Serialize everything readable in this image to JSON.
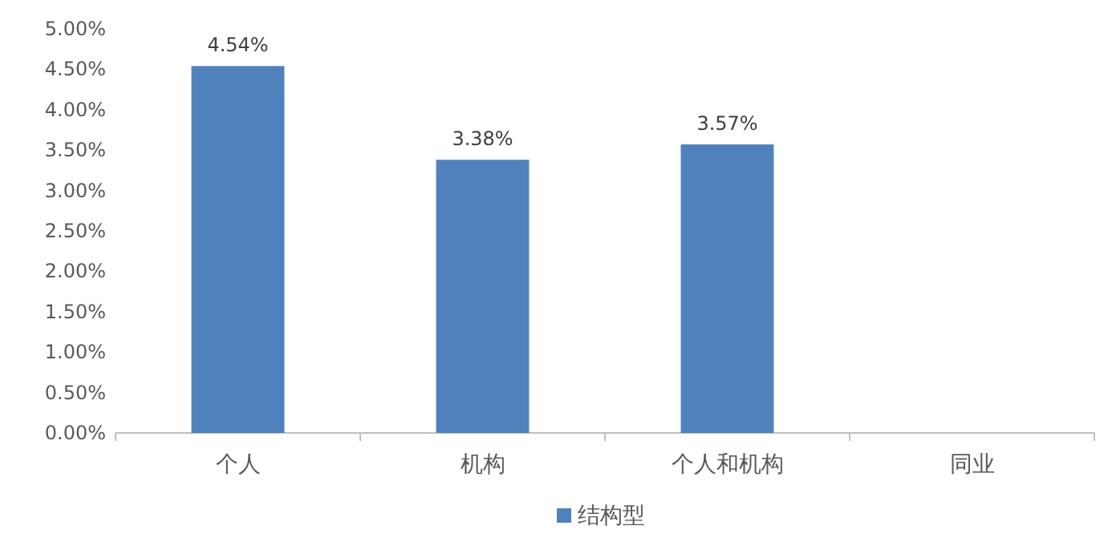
{
  "chart_data": {
    "type": "bar",
    "categories": [
      "个人",
      "机构",
      "个人和机构",
      "同业"
    ],
    "series": [
      {
        "name": "结构型",
        "color": "#4f81bd",
        "values": [
          4.54,
          3.38,
          3.57,
          null
        ],
        "value_labels": [
          "4.54%",
          "3.38%",
          "3.57%",
          null
        ]
      }
    ],
    "ylim": [
      0,
      5
    ],
    "yticks": [
      {
        "value": 0,
        "label": "0.00%"
      },
      {
        "value": 0.5,
        "label": "0.50%"
      },
      {
        "value": 1,
        "label": "1.00%"
      },
      {
        "value": 1.5,
        "label": "1.50%"
      },
      {
        "value": 2,
        "label": "2.00%"
      },
      {
        "value": 2.5,
        "label": "2.50%"
      },
      {
        "value": 3,
        "label": "3.00%"
      },
      {
        "value": 3.5,
        "label": "3.50%"
      },
      {
        "value": 4,
        "label": "4.00%"
      },
      {
        "value": 4.5,
        "label": "4.50%"
      },
      {
        "value": 5,
        "label": "5.00%"
      }
    ],
    "legend": "bottom"
  }
}
